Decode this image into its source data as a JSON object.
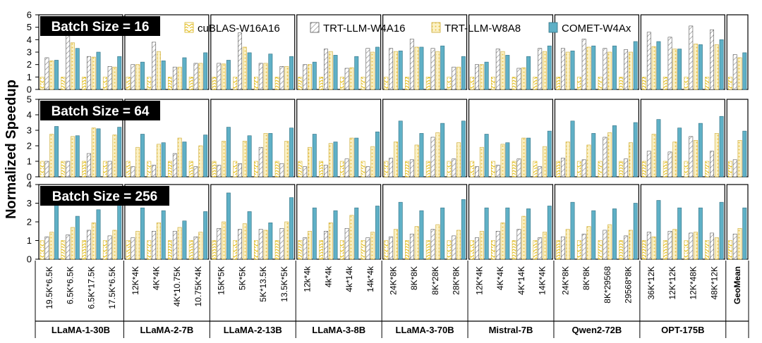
{
  "chart_data": {
    "type": "bar",
    "ylabel": "Normalized Speedup",
    "legend": {
      "placement": "top",
      "entries": [
        "cuBLAS-W16A16",
        "TRT-LLM-W4A16",
        "TRT-LLM-W8A8",
        "COMET-W4Ax"
      ]
    },
    "colors": {
      "cuBLAS-W16A16": "#e6c229",
      "TRT-LLM-W4A16": "#9a9a9a",
      "TRT-LLM-W8A8": "#f1dc8a",
      "COMET-W4Ax": "#5fb0c6"
    },
    "categories": [
      "19.5K*6.5K",
      "6.5K*6.5K",
      "6.5K*17.5K",
      "17.5K*6.5K",
      "12K*4K",
      "4K*4K",
      "4K*10.75K",
      "10.75K*4K",
      "15K*5K",
      "5K*5K",
      "5K*13.5K",
      "13.5K*5K",
      "12k*4k",
      "4k*4k",
      "4k*14k",
      "14k*4k",
      "24K*8K",
      "8K*8K",
      "8K*28K",
      "28K*8K",
      "12K*4K",
      "4K*4K",
      "4K*14K",
      "14K*4K",
      "24K*8K",
      "8K*8K",
      "8K*29568",
      "29568*8K",
      "36K*12K",
      "12K*12K",
      "12K*48K",
      "48K*12K",
      "GeoMean"
    ],
    "models": [
      {
        "name": "LLaMA-1-30B",
        "count": 4
      },
      {
        "name": "LLaMA-2-7B",
        "count": 4
      },
      {
        "name": "LLaMA-2-13B",
        "count": 4
      },
      {
        "name": "LLaMA-3-8B",
        "count": 4
      },
      {
        "name": "LLaMA-3-70B",
        "count": 4
      },
      {
        "name": "Mistral-7B",
        "count": 4
      },
      {
        "name": "Qwen2-72B",
        "count": 4
      },
      {
        "name": "OPT-175B",
        "count": 4
      }
    ],
    "panels": [
      {
        "title": "Batch Size = 16",
        "ylim": [
          0,
          6
        ],
        "yticks": [
          0,
          1,
          2,
          3,
          4,
          5,
          6
        ],
        "series": [
          {
            "name": "cuBLAS-W16A16",
            "values": [
              1,
              1,
              1,
              1,
              1,
              1,
              1,
              1,
              1,
              1,
              1,
              1,
              1,
              1,
              1,
              1,
              1,
              1,
              1,
              1,
              1,
              1,
              1,
              1,
              1,
              1,
              1,
              1,
              1,
              1,
              1,
              1,
              1
            ]
          },
          {
            "name": "TRT-LLM-W4A16",
            "values": [
              2.55,
              4.35,
              2.65,
              1.85,
              2.0,
              3.8,
              1.8,
              2.1,
              2.1,
              4.55,
              2.1,
              1.85,
              2.0,
              3.25,
              1.7,
              3.3,
              3.3,
              4.05,
              3.3,
              1.8,
              2.0,
              3.25,
              1.7,
              3.3,
              3.3,
              4.05,
              3.3,
              3.2,
              4.6,
              4.2,
              5.1,
              4.8,
              2.8
            ]
          },
          {
            "name": "TRT-LLM-W8A8",
            "values": [
              2.3,
              3.75,
              2.6,
              1.8,
              2.0,
              3.05,
              1.8,
              2.1,
              2.05,
              3.4,
              2.1,
              1.85,
              2.0,
              3.05,
              1.75,
              3.0,
              3.05,
              3.4,
              3.05,
              1.8,
              2.0,
              3.05,
              1.75,
              3.05,
              3.0,
              3.4,
              3.0,
              3.0,
              3.45,
              3.25,
              3.65,
              3.6,
              2.55
            ]
          },
          {
            "name": "COMET-W4Ax",
            "values": [
              2.35,
              3.3,
              3.0,
              2.65,
              2.2,
              2.3,
              2.55,
              2.95,
              2.35,
              2.95,
              2.85,
              2.65,
              2.2,
              2.75,
              2.65,
              3.4,
              3.1,
              3.4,
              3.5,
              2.65,
              2.2,
              2.75,
              2.65,
              3.5,
              3.1,
              3.5,
              3.5,
              3.85,
              3.85,
              3.25,
              3.6,
              4.0,
              2.95
            ]
          }
        ]
      },
      {
        "title": "Batch Size = 64",
        "ylim": [
          0,
          5
        ],
        "yticks": [
          0,
          1,
          2,
          3,
          4,
          5
        ],
        "series": [
          {
            "name": "cuBLAS-W16A16",
            "values": [
              1,
              1,
              1,
              1,
              1,
              1,
              1,
              1,
              1,
              1,
              1,
              1,
              1,
              1,
              1,
              1,
              1,
              1,
              1,
              1,
              1,
              1,
              1,
              1,
              1,
              1,
              1,
              1,
              1,
              1,
              1,
              1,
              1
            ]
          },
          {
            "name": "TRT-LLM-W4A16",
            "values": [
              1.0,
              1.0,
              1.5,
              1.0,
              0.65,
              0.75,
              1.5,
              0.65,
              0.75,
              0.85,
              1.9,
              0.85,
              0.65,
              0.75,
              1.15,
              0.65,
              1.2,
              1.1,
              2.55,
              1.15,
              0.65,
              0.75,
              1.15,
              0.65,
              1.2,
              1.1,
              2.55,
              1.15,
              1.65,
              1.6,
              2.6,
              1.65,
              1.1
            ]
          },
          {
            "name": "TRT-LLM-W8A8",
            "values": [
              2.75,
              2.6,
              3.15,
              2.7,
              1.9,
              2.1,
              2.5,
              2.0,
              2.3,
              2.3,
              2.8,
              2.3,
              1.9,
              2.15,
              2.5,
              1.95,
              2.25,
              2.05,
              2.85,
              2.2,
              1.9,
              2.1,
              2.5,
              1.95,
              2.25,
              2.05,
              2.85,
              2.2,
              2.75,
              2.25,
              2.35,
              2.8,
              2.35
            ]
          },
          {
            "name": "COMET-W4Ax",
            "values": [
              3.25,
              2.65,
              3.1,
              3.2,
              2.75,
              2.2,
              2.25,
              2.7,
              3.2,
              2.65,
              2.8,
              3.15,
              2.75,
              2.25,
              2.5,
              2.9,
              3.6,
              2.8,
              3.45,
              3.6,
              2.75,
              2.2,
              2.5,
              2.95,
              3.6,
              2.8,
              3.3,
              3.5,
              3.7,
              3.15,
              3.45,
              3.9,
              2.95
            ]
          }
        ]
      },
      {
        "title": "Batch Size = 256",
        "ylim": [
          0,
          4
        ],
        "yticks": [
          0,
          1,
          2,
          3,
          4
        ],
        "series": [
          {
            "name": "cuBLAS-W16A16",
            "values": [
              1,
              1,
              1,
              1,
              1,
              1,
              1,
              1,
              1,
              1,
              1,
              1,
              1,
              1,
              1,
              1,
              1,
              1,
              1,
              1,
              1,
              1,
              1,
              1,
              1,
              1,
              1,
              1,
              1,
              1,
              1,
              1,
              1
            ]
          },
          {
            "name": "TRT-LLM-W4A16",
            "values": [
              1.2,
              1.3,
              1.55,
              1.25,
              1.15,
              1.5,
              1.5,
              1.2,
              1.65,
              1.6,
              1.6,
              1.65,
              1.15,
              1.5,
              1.65,
              1.15,
              1.2,
              1.35,
              1.6,
              1.25,
              1.15,
              1.5,
              1.6,
              1.15,
              1.2,
              1.35,
              1.55,
              1.25,
              1.45,
              1.5,
              1.4,
              1.4,
              1.35
            ]
          },
          {
            "name": "TRT-LLM-W8A8",
            "values": [
              1.45,
              1.7,
              1.95,
              1.55,
              1.5,
              1.95,
              1.7,
              1.45,
              2.0,
              1.9,
              1.55,
              2.0,
              1.5,
              1.95,
              2.35,
              1.45,
              1.6,
              1.75,
              1.85,
              1.55,
              1.5,
              1.95,
              2.3,
              1.45,
              1.6,
              1.75,
              1.85,
              1.55,
              1.2,
              1.6,
              1.45,
              1.15,
              1.65
            ]
          },
          {
            "name": "COMET-W4Ax",
            "values": [
              3.0,
              2.3,
              2.65,
              3.0,
              2.75,
              2.6,
              2.05,
              2.55,
              3.55,
              2.55,
              1.95,
              3.3,
              2.75,
              2.6,
              2.75,
              2.85,
              3.05,
              2.6,
              2.75,
              3.2,
              2.75,
              2.75,
              2.7,
              2.85,
              3.05,
              2.6,
              2.7,
              3.0,
              3.15,
              2.75,
              2.75,
              3.05,
              2.75
            ]
          }
        ]
      }
    ]
  }
}
